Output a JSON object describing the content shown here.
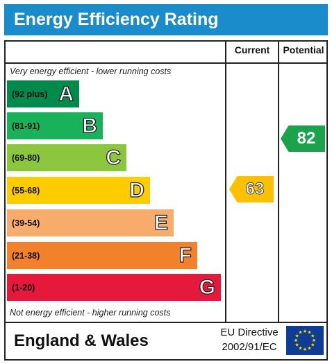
{
  "title": "Energy Efficiency Rating",
  "columns": {
    "current": "Current",
    "potential": "Potential"
  },
  "notes": {
    "top": "Very energy efficient - lower running costs",
    "bottom": "Not energy efficient - higher running costs"
  },
  "bands": [
    {
      "range": "(92 plus)",
      "letter": "A",
      "color": "#008a4b"
    },
    {
      "range": "(81-91)",
      "letter": "B",
      "color": "#19b159"
    },
    {
      "range": "(69-80)",
      "letter": "C",
      "color": "#8cc63f"
    },
    {
      "range": "(55-68)",
      "letter": "D",
      "color": "#ffcc00"
    },
    {
      "range": "(39-54)",
      "letter": "E",
      "color": "#f7ac6b"
    },
    {
      "range": "(21-38)",
      "letter": "F",
      "color": "#f2812c"
    },
    {
      "range": "(1-20)",
      "letter": "G",
      "color": "#e5193b"
    }
  ],
  "ratings": {
    "current": {
      "value": "63",
      "band": "D",
      "color": "#fbc000"
    },
    "potential": {
      "value": "82",
      "band": "B",
      "color": "#1aa34a"
    }
  },
  "footer": {
    "region": "England & Wales",
    "directive_line1": "EU Directive",
    "directive_line2": "2002/91/EC",
    "flag_icon": "eu-flag-icon"
  }
}
